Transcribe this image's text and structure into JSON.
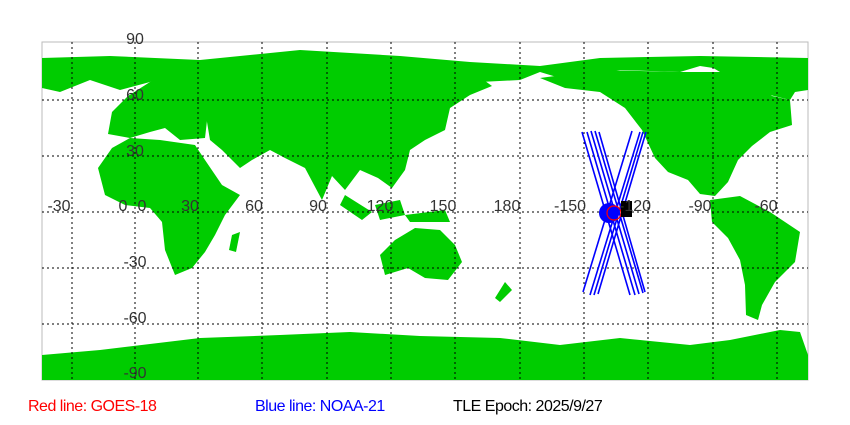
{
  "map": {
    "land_color": "#00cc00",
    "lon_labels": [
      "-30",
      "0",
      "30",
      "60",
      "90",
      "120",
      "150",
      "180",
      "-150",
      "-120",
      "-90",
      "-60"
    ],
    "lat_labels": [
      "90",
      "60",
      "30",
      "0",
      "-30",
      "-60",
      "-90"
    ]
  },
  "satellites": {
    "red": {
      "name_label": "Red line: GOES-18",
      "color": "#ff0000"
    },
    "blue": {
      "name_label": "Blue line: NOAA-21",
      "color": "#0000ff"
    }
  },
  "tle_epoch": "TLE Epoch: 2025/9/27"
}
